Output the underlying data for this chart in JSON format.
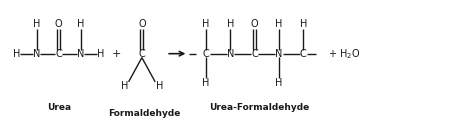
{
  "bg_color": "#ffffff",
  "text_color": "#1a1a1a",
  "fig_width": 4.74,
  "fig_height": 1.27,
  "dpi": 100,
  "label_urea": "Urea",
  "label_formaldehyde": "Formaldehyde",
  "label_uf": "Urea-Formaldehyde",
  "font_size_atoms": 7.0,
  "font_size_labels": 6.5,
  "font_size_plus": 8.0,
  "lw": 1.0,
  "xlim": [
    0,
    10.5
  ],
  "ylim": [
    0,
    3.8
  ],
  "y_main": 2.2,
  "y_top": 3.1,
  "y_bot": 1.3,
  "y_lbl": 0.55,
  "y_lbl2": 0.35
}
